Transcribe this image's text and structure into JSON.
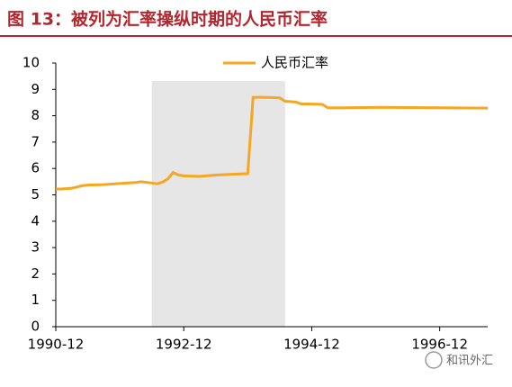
{
  "chart_data": {
    "type": "line",
    "title": "图 13：被列为汇率操纵时期的人民币汇率",
    "x": [
      "1990-12",
      "1991-01",
      "1991-03",
      "1991-05",
      "1991-06",
      "1991-09",
      "1991-12",
      "1992-03",
      "1992-04",
      "1992-06",
      "1992-07",
      "1992-08",
      "1992-09",
      "1992-10",
      "1992-11",
      "1992-12",
      "1993-03",
      "1993-06",
      "1993-09",
      "1993-12",
      "1994-01",
      "1994-03",
      "1994-06",
      "1994-07",
      "1994-09",
      "1994-10",
      "1995-01",
      "1995-02",
      "1995-03",
      "1995-06",
      "1996-01",
      "1996-06",
      "1997-01",
      "1997-09"
    ],
    "series": [
      {
        "name": "人民币汇率",
        "color": "#f5a623",
        "values": [
          5.22,
          5.22,
          5.25,
          5.35,
          5.37,
          5.39,
          5.43,
          5.47,
          5.5,
          5.45,
          5.42,
          5.48,
          5.6,
          5.85,
          5.75,
          5.72,
          5.7,
          5.75,
          5.78,
          5.8,
          8.7,
          8.7,
          8.68,
          8.55,
          8.52,
          8.45,
          8.44,
          8.43,
          8.3,
          8.3,
          8.32,
          8.31,
          8.3,
          8.29
        ]
      }
    ],
    "shaded_range": [
      "1992-06",
      "1994-07"
    ],
    "shade_color": "#e6e6e6",
    "xlim": [
      "1990-12",
      "1997-09"
    ],
    "xticks": [
      "1990-12",
      "1992-12",
      "1994-12",
      "1996-12"
    ],
    "ylim": [
      0,
      10
    ],
    "yticks": [
      0,
      1,
      2,
      3,
      4,
      5,
      6,
      7,
      8,
      9,
      10
    ],
    "grid": false,
    "legend": "top",
    "watermark": "和讯外汇"
  }
}
